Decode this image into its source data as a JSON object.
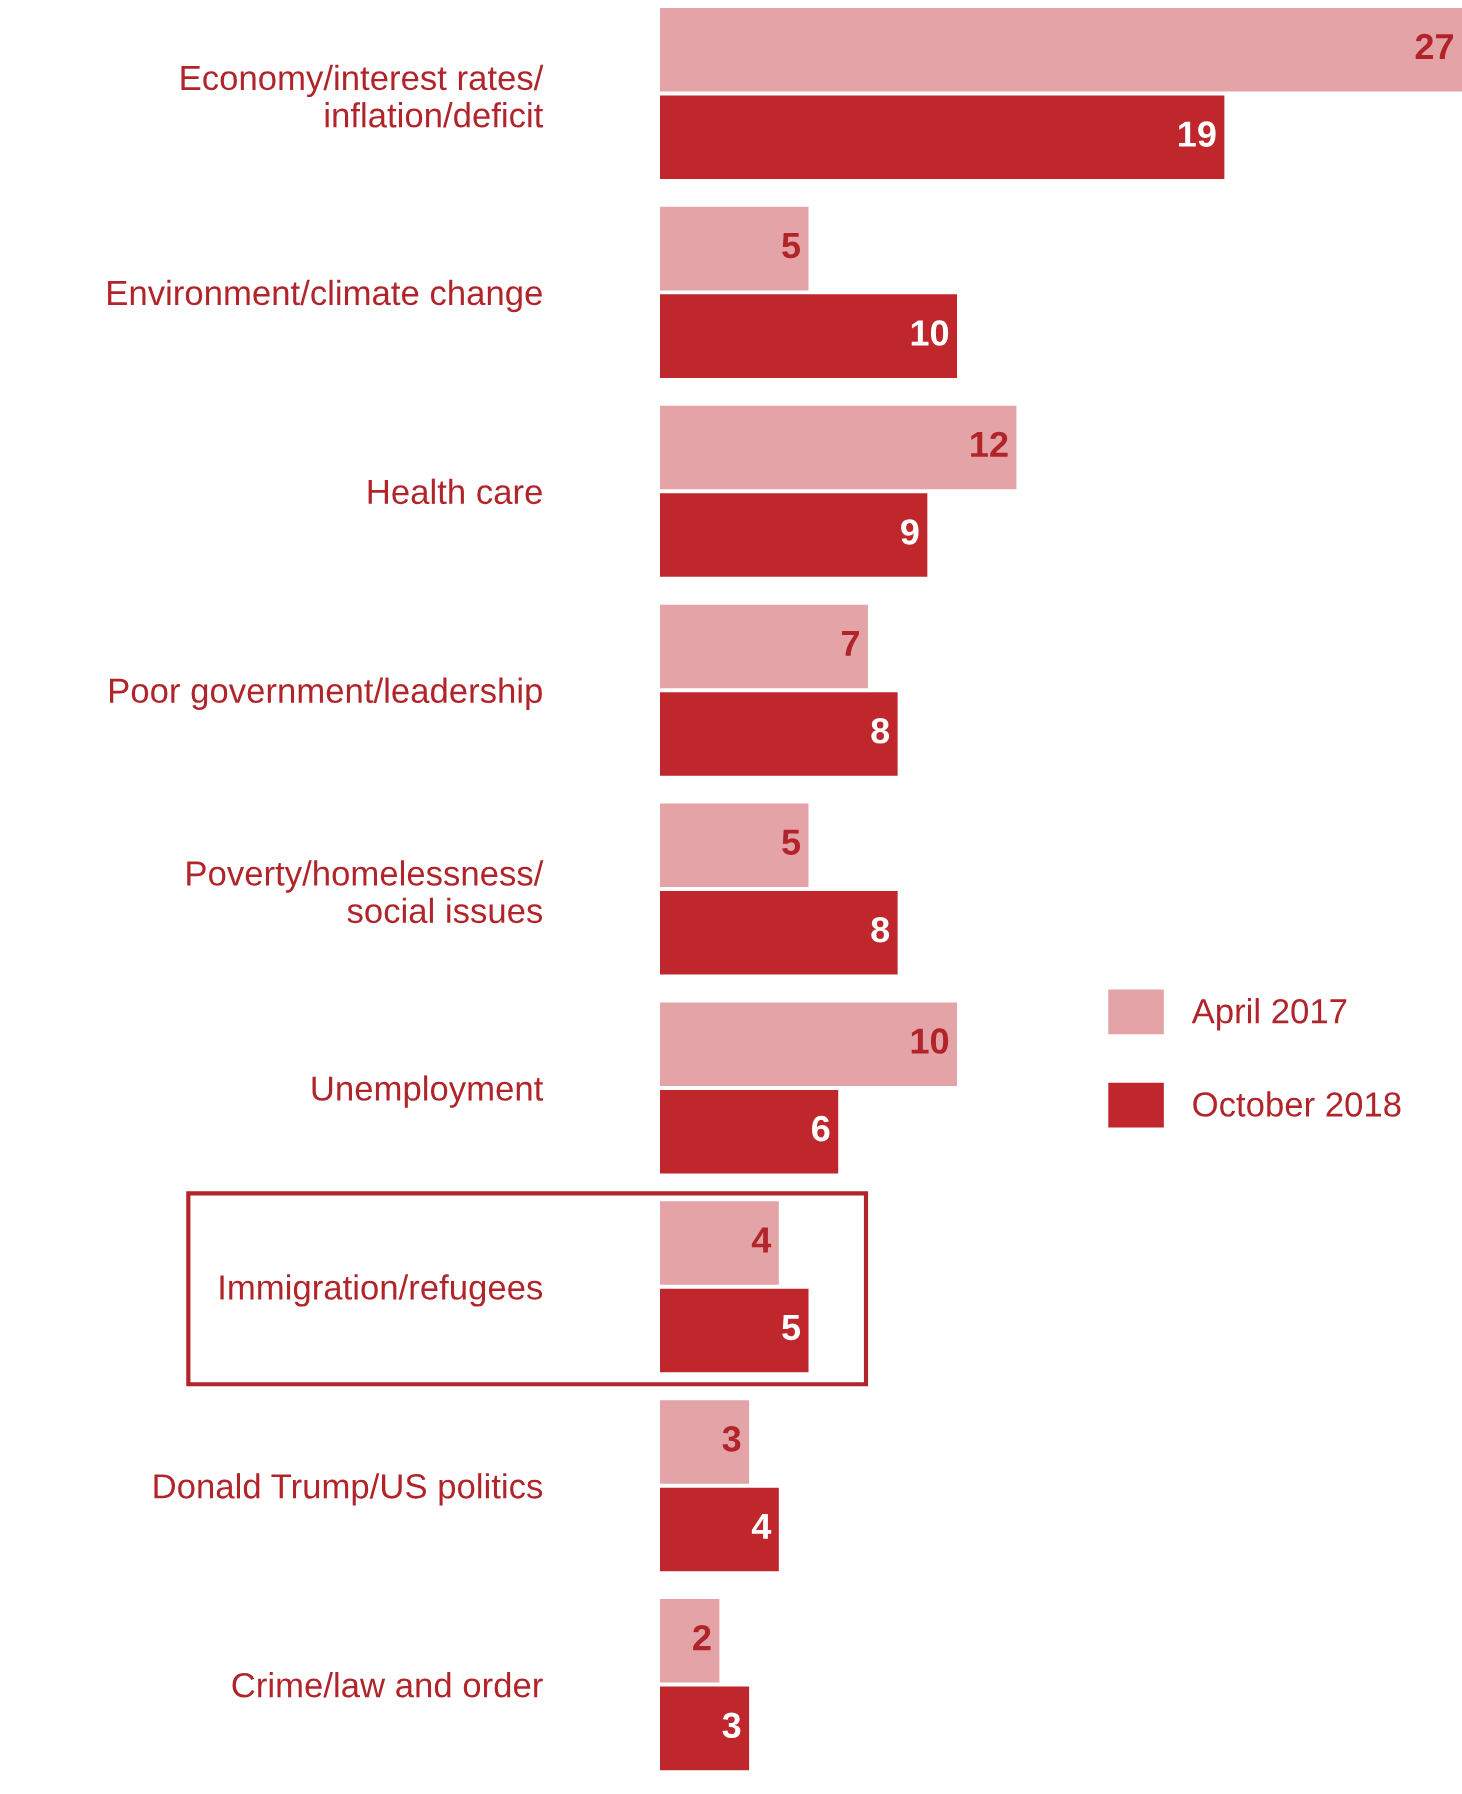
{
  "chart_data": {
    "type": "bar",
    "orientation": "horizontal",
    "categories": [
      "Economy/interest rates/\ninflation/deficit",
      "Environment/climate change",
      "Health care",
      "Poor government/leadership",
      "Poverty/homelessness/\nsocial issues",
      "Unemployment",
      "Immigration/refugees",
      "Donald Trump/US politics",
      "Crime/law and order"
    ],
    "series": [
      {
        "name": "April 2017",
        "color": "#e4a3a6",
        "values": [
          27,
          5,
          12,
          7,
          5,
          10,
          4,
          3,
          2
        ]
      },
      {
        "name": "October 2018",
        "color": "#c0272d",
        "values": [
          19,
          10,
          9,
          8,
          8,
          6,
          5,
          4,
          3
        ]
      }
    ],
    "data_labels": true,
    "legend": "right",
    "grid": false
  }
}
